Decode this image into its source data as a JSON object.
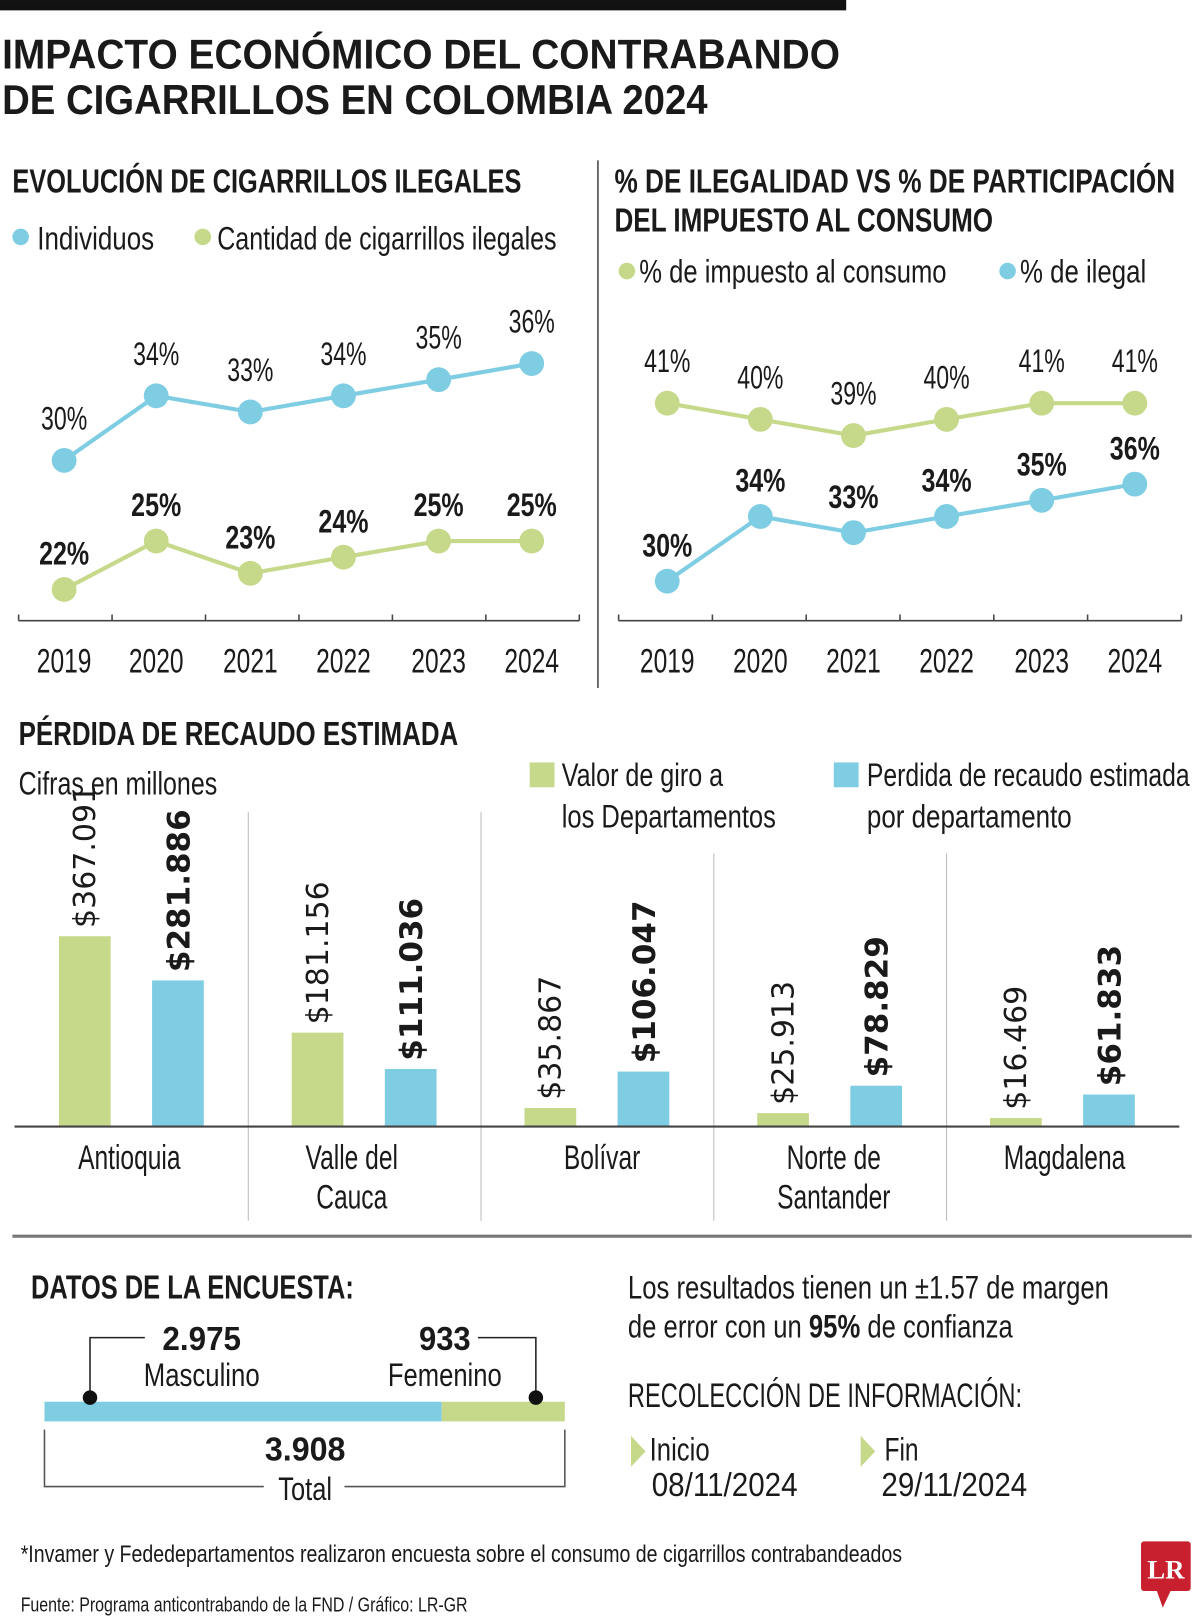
{
  "title": {
    "line1": "IMPACTO ECONÓMICO DEL CONTRABANDO",
    "line2": "DE CIGARRILLOS EN COLOMBIA 2024"
  },
  "colors": {
    "blue": "#7fcde3",
    "green": "#c6d98a",
    "logo_red": "#c8202e"
  },
  "chart_data": [
    {
      "type": "line",
      "title": "EVOLUCIÓN DE CIGARRILLOS ILEGALES",
      "categories": [
        "2019",
        "2020",
        "2021",
        "2022",
        "2023",
        "2024"
      ],
      "series": [
        {
          "name": "Individuos",
          "color": "#7fcde3",
          "values": [
            30,
            34,
            33,
            34,
            35,
            36
          ],
          "labels": [
            "30%",
            "34%",
            "33%",
            "34%",
            "35%",
            "36%"
          ],
          "bold_labels": false
        },
        {
          "name": "Cantidad de cigarrillos ilegales",
          "color": "#c6d98a",
          "values": [
            22,
            25,
            23,
            24,
            25,
            25
          ],
          "labels": [
            "22%",
            "25%",
            "23%",
            "24%",
            "25%",
            "25%"
          ],
          "bold_labels": true
        }
      ],
      "legend": "top-left",
      "grid": false
    },
    {
      "type": "line",
      "title": [
        "% DE ILEGALIDAD VS % DE PARTICIPACIÓN",
        "DEL IMPUESTO AL CONSUMO"
      ],
      "categories": [
        "2019",
        "2020",
        "2021",
        "2022",
        "2023",
        "2024"
      ],
      "series": [
        {
          "name": "% de impuesto al consumo",
          "color": "#c6d98a",
          "values": [
            41,
            40,
            39,
            40,
            41,
            41
          ],
          "labels": [
            "41%",
            "40%",
            "39%",
            "40%",
            "41%",
            "41%"
          ],
          "bold_labels": false
        },
        {
          "name": "% de ilegal",
          "color": "#7fcde3",
          "values": [
            30,
            34,
            33,
            34,
            35,
            36
          ],
          "labels": [
            "30%",
            "34%",
            "33%",
            "34%",
            "35%",
            "36%"
          ],
          "bold_labels": true
        }
      ],
      "legend": "top-left",
      "grid": false
    },
    {
      "type": "bar",
      "title": "PÉRDIDA DE RECAUDO ESTIMADA",
      "subtitle": "Cifras en millones",
      "categories": [
        [
          "Antioquia"
        ],
        [
          "Valle del",
          "Cauca"
        ],
        [
          "Bolívar"
        ],
        [
          "Norte de",
          "Santander"
        ],
        [
          "Magdalena"
        ]
      ],
      "series": [
        {
          "name": [
            "Valor de giro a",
            "los Departamentos"
          ],
          "color": "#c6d98a",
          "values": [
            367091,
            181156,
            35867,
            25913,
            16469
          ],
          "labels": [
            "$367.091",
            "$181.156",
            "$35.867",
            "$25.913",
            "$16.469"
          ],
          "bold_labels": false
        },
        {
          "name": [
            "Perdida de recaudo estimada",
            "por departamento"
          ],
          "color": "#7fcde3",
          "values": [
            281886,
            111036,
            106047,
            78829,
            61833
          ],
          "labels": [
            "$281.886",
            "$111.036",
            "$106.047",
            "$78.829",
            "$61.833"
          ],
          "bold_labels": true
        }
      ],
      "legend": "top-right",
      "grid": false
    }
  ],
  "survey": {
    "title": "DATOS DE LA ENCUESTA:",
    "male_value": "2.975",
    "male_label": "Masculino",
    "male_count": 2975,
    "female_value": "933",
    "female_label": "Femenino",
    "female_count": 933,
    "total_value": "3.908",
    "total_label": "Total",
    "margin_line1": "Los resultados tienen un ±1.57 de margen",
    "margin_line2_a": "de error con un ",
    "margin_line2_b": "95%",
    "margin_line2_c": " de confianza",
    "collection_title": "RECOLECCIÓN DE INFORMACIÓN:",
    "start_label": "Inicio",
    "start_date": "08/11/2024",
    "end_label": "Fin",
    "end_date": "29/11/2024"
  },
  "footnote": "*Invamer y Fededepartamentos realizaron encuesta sobre el consumo de cigarrillos contrabandeados",
  "source": "Fuente: Programa anticontrabando de la FND / Gráfico: LR-GR",
  "logo": "LR"
}
